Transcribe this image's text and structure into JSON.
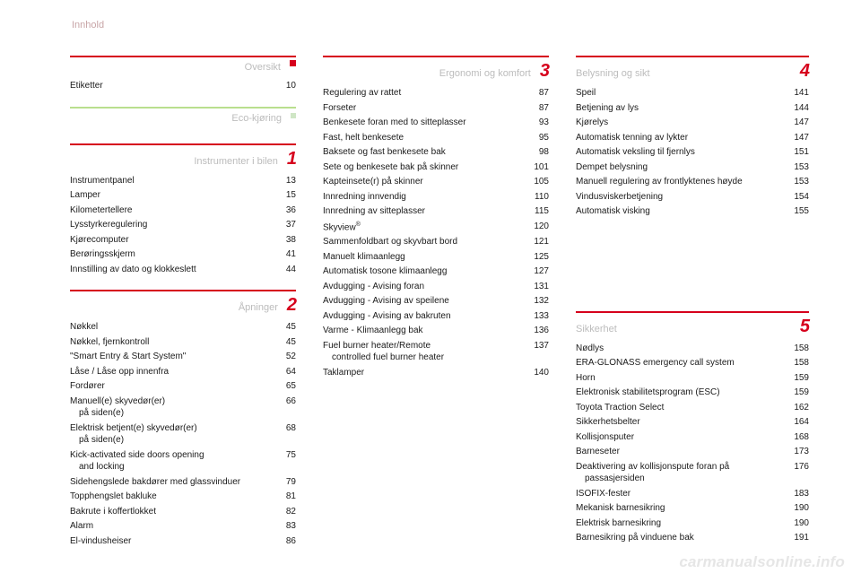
{
  "header": "Innhold",
  "watermark": "carmanualsonline.info",
  "colors": {
    "rule_red": "#d6001c",
    "rule_green": "#b9df8e",
    "title_grey": "#bcbcbc",
    "header_rose": "#c8a5a7",
    "text": "#1a1a1a"
  },
  "columns": [
    {
      "sections": [
        {
          "rule_color": "#d6001c",
          "title": "Oversikt",
          "num": ".",
          "num_style": "dot",
          "align": "right",
          "entries": [
            {
              "label": "Etiketter",
              "page": "10"
            }
          ]
        },
        {
          "rule_color": "#b9df8e",
          "title": "Eco-kjøring",
          "num": "",
          "num_style": "small-dot",
          "align": "right",
          "entries": []
        },
        {
          "rule_color": "#d6001c",
          "title": "Instrumenter i bilen",
          "num": "1",
          "align": "right",
          "entries": [
            {
              "label": "Instrumentpanel",
              "page": "13"
            },
            {
              "label": "Lamper",
              "page": "15"
            },
            {
              "label": "Kilometertellere",
              "page": "36"
            },
            {
              "label": "Lysstyrkeregulering",
              "page": "37"
            },
            {
              "label": "Kjørecomputer",
              "page": "38"
            },
            {
              "label": "Berøringsskjerm",
              "page": "41"
            },
            {
              "label": "Innstilling av dato og klokkeslett",
              "page": "44"
            }
          ]
        },
        {
          "rule_color": "#d6001c",
          "title": "Åpninger",
          "num": "2",
          "align": "right",
          "entries": [
            {
              "label": "Nøkkel",
              "page": "45"
            },
            {
              "label": "Nøkkel, fjernkontroll",
              "page": "45"
            },
            {
              "label": "\"Smart Entry & Start System\"",
              "page": "52"
            },
            {
              "label": "Låse / Låse opp innenfra",
              "page": "64"
            },
            {
              "label": "Fordører",
              "page": "65"
            },
            {
              "label": "Manuell(e) skyvedør(er)",
              "cont": "på siden(e)",
              "page": "66"
            },
            {
              "label": "Elektrisk betjent(e) skyvedør(er)",
              "cont": "på siden(e)",
              "page": "68"
            },
            {
              "label": "Kick-activated side doors opening",
              "cont": "and locking",
              "page": "75"
            },
            {
              "label": "Sidehengslede bakdører med glassvinduer",
              "page": "79"
            },
            {
              "label": "Topphengslet bakluke",
              "page": "81"
            },
            {
              "label": "Bakrute i koffertlokket",
              "page": "82"
            },
            {
              "label": "Alarm",
              "page": "83"
            },
            {
              "label": "El-vindusheiser",
              "page": "86"
            }
          ]
        }
      ]
    },
    {
      "sections": [
        {
          "rule_color": "#d6001c",
          "title": "Ergonomi og komfort",
          "num": "3",
          "align": "right",
          "entries": [
            {
              "label": "Regulering av rattet",
              "page": "87"
            },
            {
              "label": "Forseter",
              "page": "87"
            },
            {
              "label": "Benkesete foran med to sitteplasser",
              "page": "93"
            },
            {
              "label": "Fast, helt benkesete",
              "page": "95"
            },
            {
              "label": "Baksete og fast benkesete bak",
              "page": "98"
            },
            {
              "label": "Sete og benkesete bak på skinner",
              "page": "101"
            },
            {
              "label": "Kapteinsete(r) på skinner",
              "page": "105"
            },
            {
              "label": "Innredning innvendig",
              "page": "110"
            },
            {
              "label": "Innredning av sitteplasser",
              "page": "115"
            },
            {
              "label": "Skyview®",
              "sup": true,
              "page": "120"
            },
            {
              "label": "Sammenfoldbart og skyvbart bord",
              "page": "121"
            },
            {
              "label": "Manuelt klimaanlegg",
              "page": "125"
            },
            {
              "label": "Automatisk tosone klimaanlegg",
              "page": "127"
            },
            {
              "label": "Avdugging - Avising foran",
              "page": "131"
            },
            {
              "label": "Avdugging - Avising av speilene",
              "page": "132"
            },
            {
              "label": "Avdugging - Avising av bakruten",
              "page": "133"
            },
            {
              "label": "Varme - Klimaanlegg bak",
              "page": "136"
            },
            {
              "label": "Fuel burner heater/Remote",
              "cont": "controlled fuel burner heater",
              "page": "137"
            },
            {
              "label": "Taklamper",
              "page": "140"
            }
          ]
        }
      ]
    },
    {
      "sections": [
        {
          "rule_color": "#d6001c",
          "title": "Belysning og sikt",
          "num": "4",
          "align": "left",
          "entries": [
            {
              "label": "Speil",
              "page": "141"
            },
            {
              "label": "Betjening av lys",
              "page": "144"
            },
            {
              "label": "Kjørelys",
              "page": "147"
            },
            {
              "label": "Automatisk tenning av lykter",
              "page": "147"
            },
            {
              "label": "Automatisk veksling til fjernlys",
              "page": "151"
            },
            {
              "label": "Dempet belysning",
              "page": "153"
            },
            {
              "label": "Manuell regulering av frontlyktenes høyde",
              "page": "153"
            },
            {
              "label": "Vindusviskerbetjening",
              "page": "154"
            },
            {
              "label": "Automatisk visking",
              "page": "155"
            }
          ]
        },
        {
          "rule_color": "#d6001c",
          "title": "Sikkerhet",
          "num": "5",
          "align": "left",
          "spacer_before": 88,
          "entries": [
            {
              "label": "Nødlys",
              "page": "158"
            },
            {
              "label": "ERA-GLONASS emergency call system",
              "page": "158"
            },
            {
              "label": "Horn",
              "page": "159"
            },
            {
              "label": "Elektronisk stabilitetsprogram (ESC)",
              "page": "159"
            },
            {
              "label": "Toyota Traction Select",
              "page": "162"
            },
            {
              "label": "Sikkerhetsbelter",
              "page": "164"
            },
            {
              "label": "Kollisjonsputer",
              "page": "168"
            },
            {
              "label": "Barneseter",
              "page": "173"
            },
            {
              "label": "Deaktivering av kollisjonspute foran på",
              "cont": "passasjersiden",
              "page": "176"
            },
            {
              "label": "ISOFIX-fester",
              "page": "183"
            },
            {
              "label": "Mekanisk barnesikring",
              "page": "190"
            },
            {
              "label": "Elektrisk barnesikring",
              "page": "190"
            },
            {
              "label": "Barnesikring på vinduene bak",
              "page": "191"
            }
          ]
        }
      ]
    }
  ]
}
